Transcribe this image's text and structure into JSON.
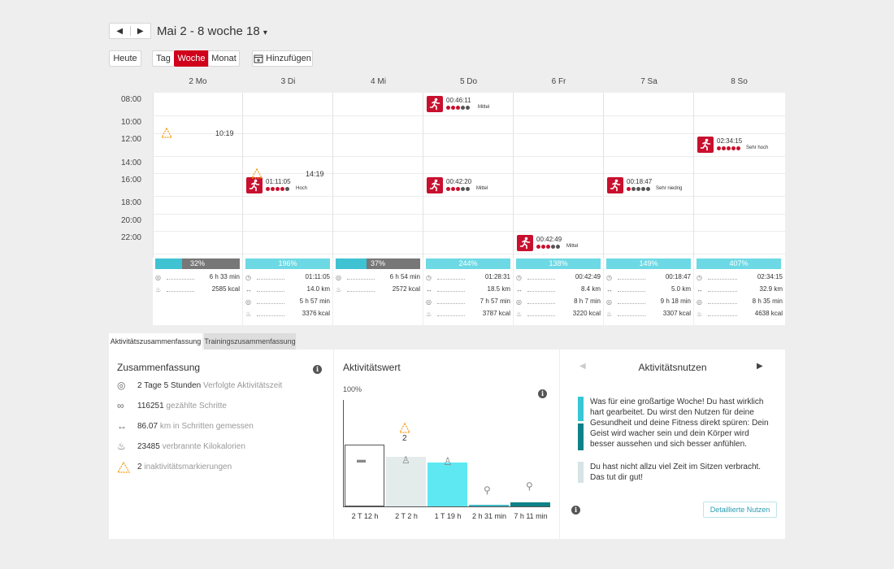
{
  "header": {
    "prev_label": "◀",
    "next_label": "▶",
    "range_title": "Mai 2 - 8 woche 18",
    "caret": "▾"
  },
  "toolbar": {
    "today_label": "Heute",
    "day_label": "Tag",
    "week_label": "Woche",
    "month_label": "Monat",
    "add_label": "Hinzufügen"
  },
  "days": [
    "2 Mo",
    "3 Di",
    "4 Mi",
    "5 Do",
    "6 Fr",
    "7 Sa",
    "8 So"
  ],
  "times": [
    "08:00",
    "10:00",
    "12:00",
    "14:00",
    "16:00",
    "18:00",
    "20:00",
    "22:00"
  ],
  "events": [
    {
      "time": "00:46:11",
      "level": "Mittel",
      "dots_on": 3
    },
    {
      "time": "02:34:15",
      "level": "Sehr hoch",
      "dots_on": 5
    },
    {
      "time": "01:11:05",
      "level": "Hoch",
      "dots_on": 4
    },
    {
      "time": "00:42:20",
      "level": "Mittel",
      "dots_on": 3
    },
    {
      "time": "00:18:47",
      "level": "Sehr niedrig",
      "dots_on": 1
    },
    {
      "time": "00:42:49",
      "level": "Mittel",
      "dots_on": 3
    }
  ],
  "inactivity": [
    {
      "time": "10:19"
    },
    {
      "time": "14:19"
    }
  ],
  "summaries": [
    {
      "pct": "32%",
      "fraction": 0.32,
      "active_time": "6 h 33 min",
      "kcal": "2585 kcal"
    },
    {
      "pct": "196%",
      "fraction": 1.0,
      "training": "01:11:05",
      "distance": "14.0 km",
      "active_time": "5 h 57 min",
      "kcal": "3376 kcal"
    },
    {
      "pct": "37%",
      "fraction": 0.37,
      "active_time": "6 h 54 min",
      "kcal": "2572 kcal"
    },
    {
      "pct": "244%",
      "fraction": 1.0,
      "training": "01:28:31",
      "distance": "18.5 km",
      "active_time": "7 h 57 min",
      "kcal": "3787 kcal"
    },
    {
      "pct": "138%",
      "fraction": 1.0,
      "training": "00:42:49",
      "distance": "8.4 km",
      "active_time": "8 h 7 min",
      "kcal": "3220 kcal"
    },
    {
      "pct": "149%",
      "fraction": 1.0,
      "training": "00:18:47",
      "distance": "5.0 km",
      "active_time": "9 h 18 min",
      "kcal": "3307 kcal"
    },
    {
      "pct": "407%",
      "fraction": 1.0,
      "training": "02:34:15",
      "distance": "32.9 km",
      "active_time": "8 h 35 min",
      "kcal": "4638 kcal"
    }
  ],
  "tabs": {
    "activity_summary": "Aktivitätszusammenfassung",
    "training_summary": "Trainingszusammenfassung"
  },
  "summary_panel": {
    "title": "Zusammenfassung",
    "items": [
      {
        "value": "2 Tage 5 Stunden",
        "label": "Verfolgte Aktivitätszeit"
      },
      {
        "value": "116251",
        "label": "gezählte Schritte"
      },
      {
        "value": "86.07",
        "label": "km in Schritten gemessen"
      },
      {
        "value": "23485",
        "label": "verbrannte Kilokalorien"
      },
      {
        "value": "2",
        "label": "inaktivitätsmarkierungen"
      }
    ]
  },
  "activity_panel": {
    "title": "Aktivitätswert",
    "top_label": "100%",
    "inactivity_count": "2",
    "bars": [
      {
        "label": "2 T 12 h",
        "fraction": 0.75,
        "color": "#ffffff"
      },
      {
        "label": "2 T 2 h",
        "fraction": 0.6,
        "color": "#e3ebeb"
      },
      {
        "label": "1 T 19 h",
        "fraction": 0.54,
        "color": "#5ee8f2"
      },
      {
        "label": "2 h 31 min",
        "fraction": 0.02,
        "color": "#3fb8c4"
      },
      {
        "label": "7 h 11 min",
        "fraction": 0.05,
        "color": "#0f8288"
      }
    ]
  },
  "benefit_panel": {
    "title": "Aktivitätsnutzen",
    "prev": "◀",
    "next": "▶",
    "message1": "Was für eine großartige Woche! Du hast wirklich hart gearbeitet. Du wirst den Nutzen für deine Gesundheit und deine Fitness direkt spüren: Dein Geist wird wacher sein und dein Körper wird besser aussehen und sich besser anfühlen.",
    "message2": "Du hast nicht allzu viel Zeit im Sitzen verbracht. Das tut dir gut!",
    "details_button": "Detaillierte Nutzen"
  },
  "colors": {
    "brand_red": "#d0021b",
    "activity_cyan": "#6dd9e4",
    "activity_dark": "#0f8288"
  }
}
